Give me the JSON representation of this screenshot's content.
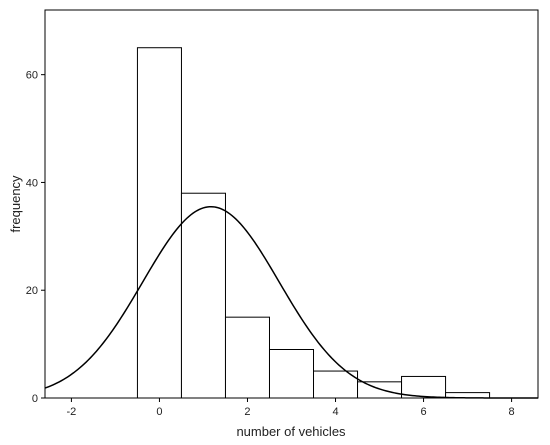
{
  "chart_data": {
    "type": "bar",
    "subtype": "histogram with fitted normal curve",
    "title": "",
    "xlabel": "number of vehicles",
    "ylabel": "frequency",
    "xlim": [
      -2.6,
      8.6
    ],
    "ylim": [
      0,
      72
    ],
    "x_ticks": [
      -2,
      0,
      2,
      4,
      6,
      8
    ],
    "y_ticks": [
      0,
      20,
      40,
      60
    ],
    "grid": false,
    "legend": "none",
    "bins": [
      {
        "from": -0.5,
        "to": 0.5,
        "value": 65
      },
      {
        "from": 0.5,
        "to": 1.5,
        "value": 38
      },
      {
        "from": 1.5,
        "to": 2.5,
        "value": 15
      },
      {
        "from": 2.5,
        "to": 3.5,
        "value": 9
      },
      {
        "from": 3.5,
        "to": 4.5,
        "value": 5
      },
      {
        "from": 4.5,
        "to": 5.5,
        "value": 3
      },
      {
        "from": 5.5,
        "to": 6.5,
        "value": 4
      },
      {
        "from": 6.5,
        "to": 7.5,
        "value": 1
      }
    ],
    "normal_curve": {
      "mean": 1.17,
      "sd": 1.55,
      "peak": 35.5
    },
    "colors": {
      "bar_fill": "#ffffff",
      "bar_stroke": "#000000",
      "curve": "#000000",
      "axis": "#000000"
    }
  }
}
